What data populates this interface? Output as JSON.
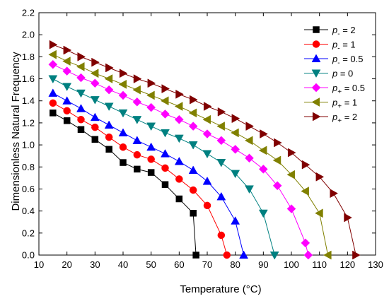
{
  "chart_data": {
    "type": "line",
    "xlabel": "Temperature (°C)",
    "ylabel": "Dimensionless Natural Frequency",
    "xlim": [
      10,
      130
    ],
    "ylim": [
      0.0,
      2.2
    ],
    "x_ticks": [
      10,
      20,
      30,
      40,
      50,
      60,
      70,
      80,
      90,
      100,
      110,
      120,
      130
    ],
    "y_ticks": [
      0.0,
      0.2,
      0.4,
      0.6,
      0.8,
      1.0,
      1.2,
      1.4,
      1.6,
      1.8,
      2.0,
      2.2
    ],
    "grid": false,
    "legend_position": "top-right",
    "series": [
      {
        "name_base": "p",
        "name_sub": "-",
        "name_value": "= 2",
        "color": "#000000",
        "marker": "square",
        "x": [
          15,
          20,
          25,
          30,
          35,
          40,
          45,
          50,
          55,
          60,
          65,
          66
        ],
        "y": [
          1.29,
          1.22,
          1.14,
          1.05,
          0.96,
          0.84,
          0.78,
          0.75,
          0.64,
          0.51,
          0.38,
          0.0
        ]
      },
      {
        "name_base": "p",
        "name_sub": "-",
        "name_value": "= 1",
        "color": "#ff0000",
        "marker": "circle",
        "x": [
          15,
          20,
          25,
          30,
          35,
          40,
          45,
          50,
          55,
          60,
          65,
          70,
          75,
          77
        ],
        "y": [
          1.38,
          1.31,
          1.23,
          1.16,
          1.07,
          0.98,
          0.91,
          0.87,
          0.79,
          0.69,
          0.59,
          0.45,
          0.18,
          0.0
        ]
      },
      {
        "name_base": "p",
        "name_sub": "-",
        "name_value": "= 0.5",
        "color": "#0000ff",
        "marker": "triangle-up",
        "x": [
          15,
          20,
          25,
          30,
          35,
          40,
          45,
          50,
          55,
          60,
          65,
          70,
          75,
          80,
          83
        ],
        "y": [
          1.47,
          1.4,
          1.33,
          1.25,
          1.18,
          1.11,
          1.04,
          0.98,
          0.92,
          0.85,
          0.77,
          0.67,
          0.53,
          0.31,
          0.0
        ]
      },
      {
        "name_base": "p",
        "name_sub": "",
        "name_value": "= 0",
        "color": "#008080",
        "marker": "triangle-down",
        "x": [
          15,
          20,
          25,
          30,
          35,
          40,
          45,
          50,
          55,
          60,
          65,
          70,
          75,
          80,
          85,
          90,
          94
        ],
        "y": [
          1.6,
          1.53,
          1.47,
          1.41,
          1.35,
          1.29,
          1.23,
          1.17,
          1.11,
          1.06,
          1.0,
          0.92,
          0.84,
          0.74,
          0.6,
          0.38,
          0.0
        ]
      },
      {
        "name_base": "p",
        "name_sub": "+",
        "name_value": "= 0.5",
        "color": "#ff00ff",
        "marker": "diamond",
        "x": [
          15,
          20,
          25,
          30,
          35,
          40,
          45,
          50,
          55,
          60,
          65,
          70,
          75,
          80,
          85,
          90,
          95,
          100,
          105,
          106
        ],
        "y": [
          1.73,
          1.67,
          1.61,
          1.56,
          1.5,
          1.45,
          1.39,
          1.34,
          1.28,
          1.23,
          1.17,
          1.1,
          1.04,
          0.96,
          0.88,
          0.78,
          0.63,
          0.42,
          0.11,
          0.0
        ]
      },
      {
        "name_base": "p",
        "name_sub": "+",
        "name_value": "= 1",
        "color": "#808000",
        "marker": "triangle-left",
        "x": [
          15,
          20,
          25,
          30,
          35,
          40,
          45,
          50,
          55,
          60,
          65,
          70,
          75,
          80,
          85,
          90,
          95,
          100,
          105,
          110,
          113
        ],
        "y": [
          1.82,
          1.76,
          1.71,
          1.65,
          1.6,
          1.55,
          1.5,
          1.45,
          1.4,
          1.35,
          1.29,
          1.23,
          1.17,
          1.11,
          1.04,
          0.95,
          0.86,
          0.73,
          0.58,
          0.38,
          0.0
        ]
      },
      {
        "name_base": "p",
        "name_sub": "+",
        "name_value": "= 2",
        "color": "#800000",
        "marker": "triangle-right",
        "x": [
          15,
          20,
          25,
          30,
          35,
          40,
          45,
          50,
          55,
          60,
          65,
          70,
          75,
          80,
          85,
          90,
          95,
          100,
          105,
          110,
          115,
          120,
          123
        ],
        "y": [
          1.91,
          1.86,
          1.8,
          1.75,
          1.7,
          1.65,
          1.6,
          1.56,
          1.51,
          1.46,
          1.41,
          1.35,
          1.3,
          1.24,
          1.17,
          1.1,
          1.02,
          0.93,
          0.82,
          0.71,
          0.56,
          0.34,
          0.0
        ]
      }
    ]
  }
}
